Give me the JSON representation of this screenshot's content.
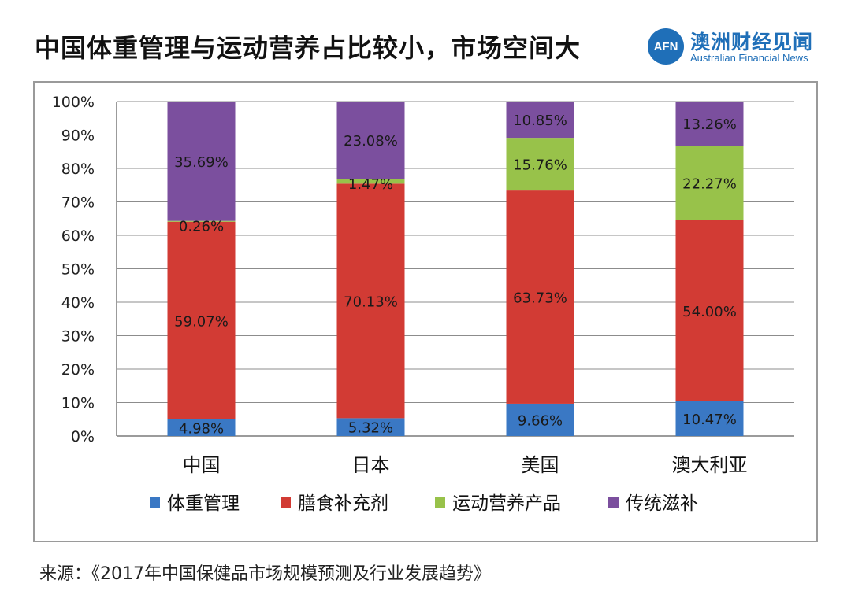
{
  "header": {
    "title": "中国体重管理与运动营养占比较小，市场空间大"
  },
  "logo": {
    "mark": "AFN",
    "name_cn": "澳洲财经见闻",
    "name_en": "Australian Financial News",
    "color": "#1f6fb8"
  },
  "chart_data": {
    "type": "bar",
    "stacked": true,
    "percent": true,
    "categories": [
      "中国",
      "日本",
      "美国",
      "澳大利亚"
    ],
    "y_ticks": [
      "0%",
      "10%",
      "20%",
      "30%",
      "40%",
      "50%",
      "60%",
      "70%",
      "80%",
      "90%",
      "100%"
    ],
    "ylim": [
      0,
      100
    ],
    "grid": true,
    "legend_position": "bottom",
    "series": [
      {
        "name": "体重管理",
        "color": "#3a78c4",
        "values": [
          4.98,
          5.32,
          9.66,
          10.47
        ],
        "labels": [
          "4.98%",
          "5.32%",
          "9.66%",
          "10.47%"
        ]
      },
      {
        "name": "膳食补充剂",
        "color": "#d23b34",
        "values": [
          59.07,
          70.13,
          63.73,
          54.0
        ],
        "labels": [
          "59.07%",
          "70.13%",
          "63.73%",
          "54.00%"
        ]
      },
      {
        "name": "运动营养产品",
        "color": "#98c24a",
        "values": [
          0.26,
          1.47,
          15.76,
          22.27
        ],
        "labels": [
          "0.26%",
          "1.47%",
          "15.76%",
          "22.27%"
        ]
      },
      {
        "name": "传统滋补",
        "color": "#7b4f9e",
        "values": [
          35.69,
          23.08,
          10.85,
          13.26
        ],
        "labels": [
          "35.69%",
          "23.08%",
          "10.85%",
          "13.26%"
        ]
      }
    ]
  },
  "footer": {
    "source": "来源：《2017年中国保健品市场规模预测及行业发展趋势》"
  }
}
